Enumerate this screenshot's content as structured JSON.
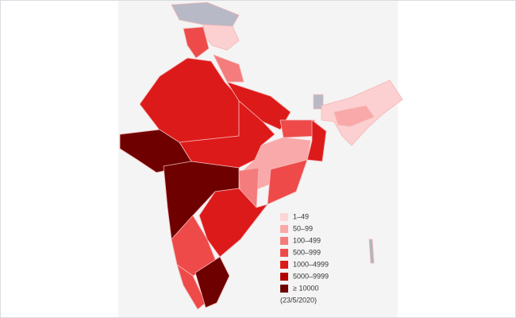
{
  "legend": {
    "items": [
      {
        "label": "1–49",
        "color": "#fcd6d6"
      },
      {
        "label": "50–99",
        "color": "#f9a9a9"
      },
      {
        "label": "100–499",
        "color": "#f47c7c"
      },
      {
        "label": "500–999",
        "color": "#ee4a4a"
      },
      {
        "label": "1000–4999",
        "color": "#dd1a1a"
      },
      {
        "label": "5000–9999",
        "color": "#b30000"
      },
      {
        "label": "≥ 10000",
        "color": "#6e0000"
      }
    ],
    "date": "(23/5/2020)"
  }
}
